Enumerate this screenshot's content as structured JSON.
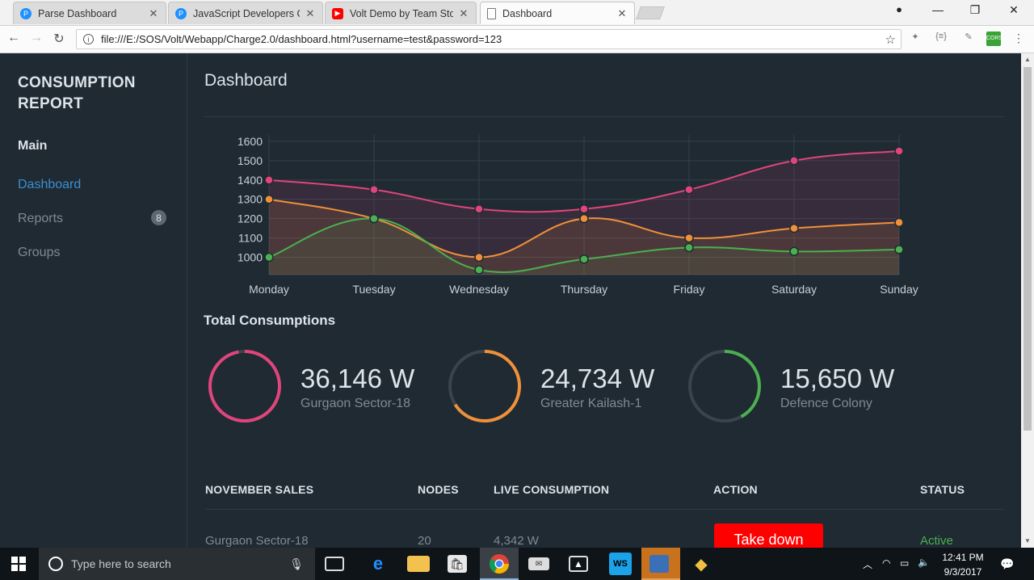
{
  "browser": {
    "tabs": [
      {
        "title": "Parse Dashboard",
        "favicon": "parse-icon",
        "color": "#1e90ff",
        "active": false
      },
      {
        "title": "JavaScript Developers Gu",
        "favicon": "parse-icon",
        "color": "#1e90ff",
        "active": false
      },
      {
        "title": "Volt Demo by Team Stor",
        "favicon": "youtube-icon",
        "color": "#ff0000",
        "active": false
      },
      {
        "title": "Dashboard",
        "favicon": "page-icon",
        "color": "#777777",
        "active": true
      }
    ],
    "url": "file:///E:/SOS/Volt/Webapp/Charge2.0/dashboard.html?username=test&password=123"
  },
  "sidebar": {
    "brand": "CONSUMPTION REPORT",
    "section": "Main",
    "items": [
      {
        "label": "Dashboard",
        "active": true
      },
      {
        "label": "Reports",
        "badge": "8"
      },
      {
        "label": "Groups"
      }
    ]
  },
  "main": {
    "title": "Dashboard",
    "total_title": "Total Consumptions",
    "gauges": [
      {
        "value": "36,146 W",
        "location": "Gurgaon Sector-18",
        "color": "#e0457b",
        "fraction": 0.97
      },
      {
        "value": "24,734 W",
        "location": "Greater Kailash-1",
        "color": "#f0913a",
        "fraction": 0.66
      },
      {
        "value": "15,650 W",
        "location": "Defence Colony",
        "color": "#4caf50",
        "fraction": 0.42
      }
    ],
    "table": {
      "headers": [
        "NOVEMBER SALES",
        "NODES",
        "LIVE CONSUMPTION",
        "ACTION",
        "STATUS"
      ],
      "rows": [
        {
          "name": "Gurgaon Sector-18",
          "nodes": "20",
          "live": "4,342 W",
          "action": "Take down",
          "status": "Active"
        }
      ]
    }
  },
  "chart_data": {
    "type": "line",
    "categories": [
      "Monday",
      "Tuesday",
      "Wednesday",
      "Thursday",
      "Friday",
      "Saturday",
      "Sunday"
    ],
    "ylim": [
      910,
      1600
    ],
    "yticks": [
      1000,
      1100,
      1200,
      1300,
      1400,
      1500,
      1600
    ],
    "grid": true,
    "series": [
      {
        "color": "#e0457b",
        "fill": "rgba(224,69,123,0.12)",
        "values": [
          1400,
          1350,
          1250,
          1250,
          1350,
          1500,
          1550
        ]
      },
      {
        "color": "#f0913a",
        "fill": "rgba(240,145,58,0.12)",
        "values": [
          1300,
          1200,
          1000,
          1200,
          1100,
          1150,
          1180
        ]
      },
      {
        "color": "#4caf50",
        "fill": "rgba(76,175,80,0.10)",
        "values": [
          1000,
          1200,
          935,
          990,
          1050,
          1030,
          1040
        ]
      }
    ]
  },
  "taskbar": {
    "search_placeholder": "Type here to search",
    "time": "12:41 PM",
    "date": "9/3/2017"
  }
}
